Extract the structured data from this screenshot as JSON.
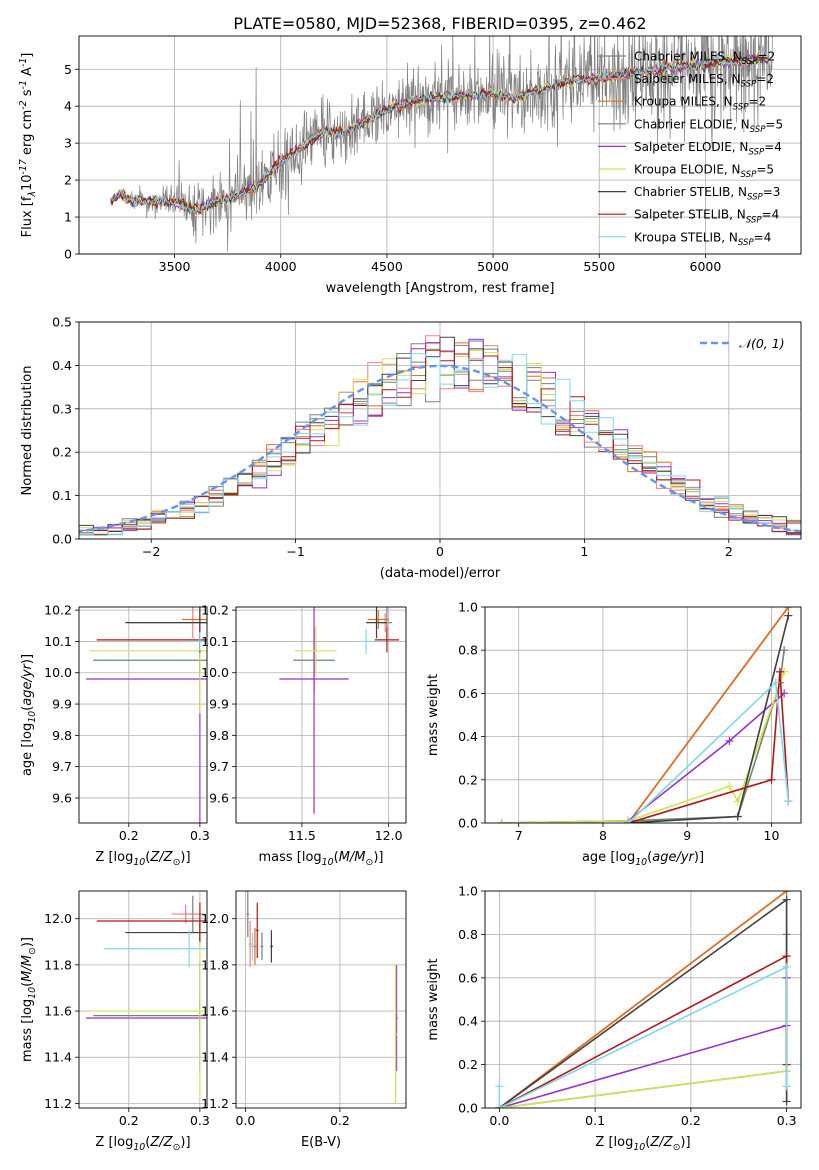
{
  "figure_title": "PLATE=0580, MJD=52368, FIBERID=0395, z=0.462",
  "models": [
    {
      "name": "Chabrier MILES, N$_{SSP}$=2",
      "imf": "Chabrier",
      "lib": "MILES",
      "nssp": "2",
      "color": "#808080"
    },
    {
      "name": "Salpeter MILES, N$_{SSP}$=2",
      "imf": "Salpeter",
      "lib": "MILES",
      "nssp": "2",
      "color": "#f08080"
    },
    {
      "name": "Kroupa MILES, N$_{SSP}$=2",
      "imf": "Kroupa",
      "lib": "MILES",
      "nssp": "2",
      "color": "#e07020"
    },
    {
      "name": "Chabrier ELODIE, N$_{SSP}$=5",
      "imf": "Chabrier",
      "lib": "ELODIE",
      "nssp": "5",
      "color": "#6a8a6a"
    },
    {
      "name": "Salpeter ELODIE, N$_{SSP}$=4",
      "imf": "Salpeter",
      "lib": "ELODIE",
      "nssp": "4",
      "color": "#9932cc"
    },
    {
      "name": "Kroupa ELODIE, N$_{SSP}$=5",
      "imf": "Kroupa",
      "lib": "ELODIE",
      "nssp": "5",
      "color": "#d4e157"
    },
    {
      "name": "Chabrier STELIB, N$_{SSP}$=3",
      "imf": "Chabrier",
      "lib": "STELIB",
      "nssp": "3",
      "color": "#404040"
    },
    {
      "name": "Salpeter STELIB, N$_{SSP}$=4",
      "imf": "Salpeter",
      "lib": "STELIB",
      "nssp": "4",
      "color": "#b01818"
    },
    {
      "name": "Kroupa STELIB, N$_{SSP}$=4",
      "imf": "Kroupa",
      "lib": "STELIB",
      "nssp": "4",
      "color": "#80d8e8"
    }
  ],
  "gaussian_label": "𝒩(0, 1)",
  "gaussian_color": "#6495ed",
  "chart_data": [
    {
      "id": "spectrum",
      "type": "line",
      "xlabel": "wavelength [Angstrom, rest frame]",
      "ylabel": "Flux [f$_λ$10$^{-17}$ erg cm$^{-2}$ s$^{-1}$ A$^{-1}$]",
      "xlim": [
        3050,
        6450
      ],
      "ylim": [
        0,
        5.9
      ],
      "xticks": [
        3500,
        4000,
        4500,
        5000,
        5500,
        6000
      ],
      "yticks": [
        0,
        1,
        2,
        3,
        4,
        5
      ],
      "model_continuum": {
        "x": [
          3200,
          3250,
          3300,
          3400,
          3500,
          3600,
          3700,
          3800,
          3900,
          4000,
          4100,
          4200,
          4300,
          4400,
          4500,
          4600,
          4700,
          4800,
          4900,
          5000,
          5100,
          5200,
          5300,
          5400,
          5500,
          5600,
          5700,
          5800,
          5900,
          6000,
          6100,
          6200,
          6300
        ],
        "y": [
          1.45,
          1.6,
          1.4,
          1.45,
          1.4,
          1.2,
          1.4,
          1.6,
          1.9,
          2.5,
          2.9,
          3.3,
          3.3,
          3.6,
          3.9,
          4.1,
          4.2,
          4.25,
          4.3,
          4.35,
          4.2,
          4.4,
          4.6,
          4.7,
          4.75,
          4.85,
          4.95,
          5.0,
          5.1,
          5.15,
          5.2,
          5.25,
          5.3
        ]
      },
      "data_noise_sigma": {
        "x": [
          3200,
          3500,
          3900,
          4300,
          5000,
          5300,
          5600,
          6000,
          6300
        ],
        "y": [
          0.05,
          0.5,
          1.0,
          0.7,
          0.9,
          1.1,
          1.3,
          1.5,
          1.6
        ]
      },
      "legend_position": "upper right"
    },
    {
      "id": "residual_distribution",
      "type": "histogram",
      "xlabel": "(data-model)/error",
      "ylabel": "Normed distribution",
      "xlim": [
        -2.5,
        2.5
      ],
      "ylim": [
        0,
        0.5
      ],
      "xticks": [
        -2,
        -1,
        0,
        1,
        2
      ],
      "yticks": [
        0.0,
        0.1,
        0.2,
        0.3,
        0.4,
        0.5
      ],
      "bin_width": 0.1,
      "grid": true,
      "legend_position": "upper right"
    },
    {
      "id": "age_vs_Z",
      "type": "errorbar",
      "xlabel": "Z [log$_{10}$($Z/Z_⊙$)]",
      "ylabel": "age  [log$_{10}$($age/yr$)]",
      "xlim": [
        0.13,
        0.31
      ],
      "ylim": [
        9.52,
        10.21
      ],
      "xticks": [
        0.2,
        0.3
      ],
      "yticks": [
        9.6,
        9.7,
        9.8,
        9.9,
        10.0,
        10.1,
        10.2
      ],
      "points": [
        {
          "x": 0.3,
          "y": 10.16,
          "xerr": 0.1,
          "yerr": 0.11
        },
        {
          "x": 0.29,
          "y": 10.16,
          "xerr": 0.01,
          "yerr": 0.05
        },
        {
          "x": 0.3,
          "y": 10.17,
          "xerr": 0.025,
          "yerr": 0.07
        },
        {
          "x": 0.3,
          "y": 10.04,
          "xerr": 0.15,
          "yerr": 0.06
        },
        {
          "x": 0.3,
          "y": 9.98,
          "xerr": 0.16,
          "yerr": 0.48
        },
        {
          "x": 0.3,
          "y": 10.07,
          "xerr": 0.155,
          "yerr": 0.2
        },
        {
          "x": 0.3,
          "y": 10.16,
          "xerr": 0.105,
          "yerr": 0.05
        },
        {
          "x": 0.3,
          "y": 10.105,
          "xerr": 0.145,
          "yerr": 0.04
        },
        {
          "x": 0.3,
          "y": 10.1,
          "xerr": 0.02,
          "yerr": 0.03
        }
      ]
    },
    {
      "id": "age_vs_mass",
      "type": "errorbar",
      "xlabel": "mass [log$_{10}$($M/M_⊙$)]",
      "xlim": [
        11.12,
        12.1
      ],
      "ylim": [
        9.52,
        10.21
      ],
      "xticks": [
        11.5,
        12.0
      ],
      "yticks": [
        9.6,
        9.7,
        9.8,
        9.9,
        10.0,
        10.1,
        10.2
      ],
      "points": [
        {
          "x": 11.99,
          "y": 10.16,
          "xerr": 0.03,
          "yerr": 0.05
        },
        {
          "x": 11.98,
          "y": 10.16,
          "xerr": 0.02,
          "yerr": 0.03
        },
        {
          "x": 11.94,
          "y": 10.17,
          "xerr": 0.06,
          "yerr": 0.03
        },
        {
          "x": 11.57,
          "y": 10.04,
          "xerr": 0.12,
          "yerr": 0.1
        },
        {
          "x": 11.57,
          "y": 9.98,
          "xerr": 0.2,
          "yerr": 0.43
        },
        {
          "x": 11.58,
          "y": 10.07,
          "xerr": 0.12,
          "yerr": 0.08
        },
        {
          "x": 11.93,
          "y": 10.16,
          "xerr": 0.06,
          "yerr": 0.05
        },
        {
          "x": 11.99,
          "y": 10.105,
          "xerr": 0.07,
          "yerr": 0.04
        },
        {
          "x": 11.87,
          "y": 10.1,
          "xerr": 0.03,
          "yerr": 0.04
        }
      ]
    },
    {
      "id": "mass_weight_vs_age",
      "type": "line",
      "xlabel": "age  [log$_{10}$($age/yr$)]",
      "ylabel": "mass weight",
      "xlim": [
        6.6,
        10.35
      ],
      "ylim": [
        0,
        1
      ],
      "xticks": [
        7,
        8,
        9,
        10
      ],
      "yticks": [
        0.0,
        0.2,
        0.4,
        0.6,
        0.8,
        1.0
      ],
      "series": [
        {
          "x": [
            8.3,
            10.2
          ],
          "y": [
            0,
            1.0
          ]
        },
        {
          "x": [
            8.3,
            10.2
          ],
          "y": [
            0,
            1.0
          ]
        },
        {
          "x": [
            8.3,
            10.2
          ],
          "y": [
            0,
            1.0
          ]
        },
        {
          "x": [
            6.8,
            8.3,
            9.6,
            10.1,
            10.15
          ],
          "y": [
            0,
            0.01,
            0.03,
            0.65,
            0.8
          ]
        },
        {
          "x": [
            6.8,
            8.3,
            9.5,
            10.15
          ],
          "y": [
            0,
            0.01,
            0.38,
            0.6
          ]
        },
        {
          "x": [
            6.8,
            8.3,
            9.5,
            9.6,
            10.15
          ],
          "y": [
            0,
            0.01,
            0.17,
            0.1,
            0.7
          ]
        },
        {
          "x": [
            8.3,
            9.6,
            10.2
          ],
          "y": [
            0,
            0.03,
            0.96
          ]
        },
        {
          "x": [
            8.3,
            10.0,
            10.1,
            10.2
          ],
          "y": [
            0,
            0.2,
            0.7,
            0.1
          ]
        },
        {
          "x": [
            8.3,
            10.05,
            10.2
          ],
          "y": [
            0,
            0.65,
            0.1
          ]
        }
      ]
    },
    {
      "id": "mass_vs_Z",
      "type": "errorbar",
      "xlabel": "Z [log$_{10}$($Z/Z_⊙$)]",
      "ylabel": "mass [log$_{10}$($M/M_⊙$)]",
      "xlim": [
        0.13,
        0.31
      ],
      "ylim": [
        11.18,
        12.12
      ],
      "xticks": [
        0.2,
        0.3
      ],
      "yticks": [
        11.2,
        11.4,
        11.6,
        11.8,
        12.0
      ],
      "points": [
        {
          "x": 0.29,
          "y": 12.02,
          "xerr": 0.015,
          "yerr": 0.08
        },
        {
          "x": 0.28,
          "y": 12.02,
          "xerr": 0.02,
          "yerr": 0.04
        },
        {
          "x": 0.3,
          "y": 11.94,
          "xerr": 0.03,
          "yerr": 0.06
        },
        {
          "x": 0.3,
          "y": 11.58,
          "xerr": 0.15,
          "yerr": 0.08
        },
        {
          "x": 0.3,
          "y": 11.57,
          "xerr": 0.16,
          "yerr": 0.24
        },
        {
          "x": 0.3,
          "y": 11.6,
          "xerr": 0.155,
          "yerr": 0.38
        },
        {
          "x": 0.3,
          "y": 11.94,
          "xerr": 0.105,
          "yerr": 0.04
        },
        {
          "x": 0.3,
          "y": 11.99,
          "xerr": 0.145,
          "yerr": 0.08
        },
        {
          "x": 0.285,
          "y": 11.87,
          "xerr": 0.12,
          "yerr": 0.08
        }
      ]
    },
    {
      "id": "mass_vs_ebv",
      "type": "errorbar",
      "xlabel": "E(B-V)",
      "xlim": [
        -0.02,
        0.34
      ],
      "ylim": [
        11.18,
        12.12
      ],
      "xticks": [
        0.0,
        0.2
      ],
      "yticks": [
        11.2,
        11.4,
        11.6,
        11.8,
        12.0
      ],
      "points": [
        {
          "x": 0.005,
          "y": 12.02,
          "xerr": 0.003,
          "yerr": 0.1
        },
        {
          "x": 0.01,
          "y": 11.89,
          "xerr": 0.003,
          "yerr": 0.1
        },
        {
          "x": 0.02,
          "y": 11.88,
          "xerr": 0.003,
          "yerr": 0.08
        },
        {
          "x": 0.035,
          "y": 11.88,
          "xerr": 0.003,
          "yerr": 0.06
        },
        {
          "x": 0.32,
          "y": 11.57,
          "xerr": 0.003,
          "yerr": 0.23
        },
        {
          "x": 0.318,
          "y": 11.5,
          "xerr": 0.003,
          "yerr": 0.3
        },
        {
          "x": 0.055,
          "y": 11.88,
          "xerr": 0.003,
          "yerr": 0.07
        },
        {
          "x": 0.025,
          "y": 11.95,
          "xerr": 0.003,
          "yerr": 0.12
        },
        {
          "x": 0.015,
          "y": 11.88,
          "xerr": 0.003,
          "yerr": 0.06
        }
      ]
    },
    {
      "id": "mass_weight_vs_Z",
      "type": "line",
      "xlabel": "Z [log$_{10}$($Z/Z_⊙$)]",
      "ylabel": "mass weight",
      "xlim": [
        -0.015,
        0.315
      ],
      "ylim": [
        0,
        1
      ],
      "xticks": [
        0.0,
        0.1,
        0.2,
        0.3
      ],
      "yticks": [
        0.0,
        0.2,
        0.4,
        0.6,
        0.8,
        1.0
      ],
      "series": [
        {
          "x": [
            0,
            0.3
          ],
          "y": [
            0,
            1.0
          ]
        },
        {
          "x": [
            0,
            0.3
          ],
          "y": [
            0,
            1.0
          ]
        },
        {
          "x": [
            0,
            0.3
          ],
          "y": [
            0,
            1.0
          ]
        },
        {
          "x": [
            0,
            0.3,
            0.3
          ],
          "y": [
            0,
            0.17,
            0.8
          ]
        },
        {
          "x": [
            0,
            0.3,
            0.3
          ],
          "y": [
            0,
            0.38,
            0.6
          ]
        },
        {
          "x": [
            0,
            0.3,
            0.3
          ],
          "y": [
            0,
            0.17,
            0.7
          ]
        },
        {
          "x": [
            0,
            0.3,
            0.3
          ],
          "y": [
            0,
            0.96,
            0.03
          ]
        },
        {
          "x": [
            0,
            0.3,
            0.3
          ],
          "y": [
            0,
            0.7,
            0.2
          ]
        },
        {
          "x": [
            0,
            0,
            0.3,
            0.3
          ],
          "y": [
            0.1,
            0,
            0.65,
            0.1
          ]
        }
      ]
    }
  ]
}
